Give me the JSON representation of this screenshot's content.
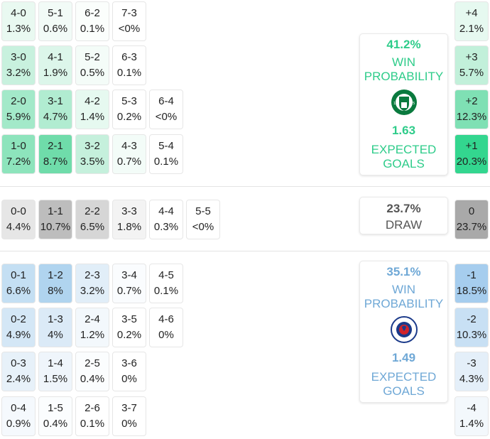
{
  "home": {
    "color": "#2ecc8a",
    "win_probability": "41.2%",
    "win_label_1": "WIN",
    "win_label_2": "PROBABILITY",
    "expected_goals": "1.63",
    "xg_label_1": "EXPECTED",
    "xg_label_2": "GOALS",
    "crest": "hibernian-crest-icon",
    "rows": [
      [
        {
          "score": "4-0",
          "pct": "1.3%",
          "bg": "#e9f9f1"
        },
        {
          "score": "5-1",
          "pct": "0.6%",
          "bg": "#f2fbf7"
        },
        {
          "score": "6-2",
          "pct": "0.1%",
          "bg": "#fbfefc"
        },
        {
          "score": "7-3",
          "pct": "<0%",
          "bg": "#ffffff"
        }
      ],
      [
        {
          "score": "3-0",
          "pct": "3.2%",
          "bg": "#c8f1de"
        },
        {
          "score": "4-1",
          "pct": "1.9%",
          "bg": "#dcf6ea"
        },
        {
          "score": "5-2",
          "pct": "0.5%",
          "bg": "#f4fcf8"
        },
        {
          "score": "6-3",
          "pct": "0.1%",
          "bg": "#ffffff"
        }
      ],
      [
        {
          "score": "2-0",
          "pct": "5.9%",
          "bg": "#a3e9c9"
        },
        {
          "score": "3-1",
          "pct": "4.7%",
          "bg": "#b1ecd1"
        },
        {
          "score": "4-2",
          "pct": "1.4%",
          "bg": "#e6f9f0"
        },
        {
          "score": "5-3",
          "pct": "0.2%",
          "bg": "#ffffff"
        },
        {
          "score": "6-4",
          "pct": "<0%",
          "bg": "#ffffff"
        }
      ],
      [
        {
          "score": "1-0",
          "pct": "7.2%",
          "bg": "#8de4bc"
        },
        {
          "score": "2-1",
          "pct": "8.7%",
          "bg": "#6fdcaa"
        },
        {
          "score": "3-2",
          "pct": "3.5%",
          "bg": "#c5f0dc"
        },
        {
          "score": "4-3",
          "pct": "0.7%",
          "bg": "#f3fcf8"
        },
        {
          "score": "5-4",
          "pct": "0.1%",
          "bg": "#ffffff"
        }
      ]
    ],
    "margins": [
      {
        "label": "+4",
        "pct": "2.1%",
        "bg": "#e6f9f0"
      },
      {
        "label": "+3",
        "pct": "5.7%",
        "bg": "#c2f0da"
      },
      {
        "label": "+2",
        "pct": "12.3%",
        "bg": "#7fe0b4"
      },
      {
        "label": "+1",
        "pct": "20.3%",
        "bg": "#33d68f"
      }
    ]
  },
  "draw": {
    "probability": "23.7%",
    "label": "DRAW",
    "color": "#555555",
    "row": [
      {
        "score": "0-0",
        "pct": "4.4%",
        "bg": "#e6e6e6"
      },
      {
        "score": "1-1",
        "pct": "10.7%",
        "bg": "#bdbdbd"
      },
      {
        "score": "2-2",
        "pct": "6.5%",
        "bg": "#d6d6d6"
      },
      {
        "score": "3-3",
        "pct": "1.8%",
        "bg": "#f3f3f3"
      },
      {
        "score": "4-4",
        "pct": "0.3%",
        "bg": "#ffffff"
      },
      {
        "score": "5-5",
        "pct": "<0%",
        "bg": "#ffffff"
      }
    ],
    "margin": {
      "label": "0",
      "pct": "23.7%",
      "bg": "#a9a9a9"
    }
  },
  "away": {
    "color": "#6fa8d6",
    "win_probability": "35.1%",
    "win_label_1": "WIN",
    "win_label_2": "PROBABILITY",
    "expected_goals": "1.49",
    "xg_label_1": "EXPECTED",
    "xg_label_2": "GOALS",
    "crest": "rangers-crest-icon",
    "rows": [
      [
        {
          "score": "0-1",
          "pct": "6.6%",
          "bg": "#c4dff3"
        },
        {
          "score": "1-2",
          "pct": "8%",
          "bg": "#b0d4ef"
        },
        {
          "score": "2-3",
          "pct": "3.2%",
          "bg": "#e1eef8"
        },
        {
          "score": "3-4",
          "pct": "0.7%",
          "bg": "#fafcfe"
        },
        {
          "score": "4-5",
          "pct": "0.1%",
          "bg": "#ffffff"
        }
      ],
      [
        {
          "score": "0-2",
          "pct": "4.9%",
          "bg": "#d4e7f6"
        },
        {
          "score": "1-3",
          "pct": "4%",
          "bg": "#dbeaf7"
        },
        {
          "score": "2-4",
          "pct": "1.2%",
          "bg": "#f3f8fc"
        },
        {
          "score": "3-5",
          "pct": "0.2%",
          "bg": "#ffffff"
        },
        {
          "score": "4-6",
          "pct": "0%",
          "bg": "#ffffff"
        }
      ],
      [
        {
          "score": "0-3",
          "pct": "2.4%",
          "bg": "#e7f1f9"
        },
        {
          "score": "1-4",
          "pct": "1.5%",
          "bg": "#eff5fb"
        },
        {
          "score": "2-5",
          "pct": "0.4%",
          "bg": "#fbfdfe"
        },
        {
          "score": "3-6",
          "pct": "0%",
          "bg": "#ffffff"
        }
      ],
      [
        {
          "score": "0-4",
          "pct": "0.9%",
          "bg": "#f5f9fd"
        },
        {
          "score": "1-5",
          "pct": "0.4%",
          "bg": "#fbfdfe"
        },
        {
          "score": "2-6",
          "pct": "0.1%",
          "bg": "#ffffff"
        },
        {
          "score": "3-7",
          "pct": "0%",
          "bg": "#ffffff"
        }
      ]
    ],
    "margins": [
      {
        "label": "-1",
        "pct": "18.5%",
        "bg": "#a6cdee"
      },
      {
        "label": "-2",
        "pct": "10.3%",
        "bg": "#c8e0f4"
      },
      {
        "label": "-3",
        "pct": "4.3%",
        "bg": "#e4eff9"
      },
      {
        "label": "-4",
        "pct": "1.4%",
        "bg": "#f3f8fc"
      }
    ]
  }
}
